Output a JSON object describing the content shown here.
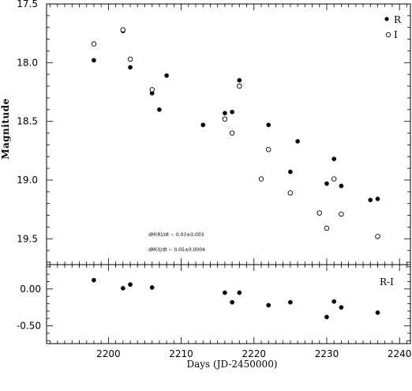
{
  "chart_data": [
    {
      "type": "scatter",
      "ylabel": "Magnitude",
      "xlabel": "",
      "xlim": [
        2191.5,
        2241.5
      ],
      "ylim": [
        19.72,
        17.5
      ],
      "y_inverted": true,
      "x_major_ticks": [
        2200,
        2210,
        2220,
        2230,
        2240
      ],
      "x_minor_step": 1,
      "y_major_ticks": [
        17.5,
        18.0,
        18.5,
        19.0,
        19.5
      ],
      "y_tick_labels": [
        "17.5",
        "18.0",
        "18.5",
        "19.0",
        "19.5"
      ],
      "y_minor_step": 0.1,
      "legend_position": "top-right",
      "series": [
        {
          "name": "R",
          "marker": "filled-circle",
          "color": "#000000",
          "x": [
            2198,
            2202,
            2203,
            2206,
            2207,
            2208,
            2213,
            2216,
            2217,
            2218,
            2222,
            2225,
            2226,
            2230,
            2231,
            2232,
            2236,
            2237
          ],
          "y": [
            17.98,
            17.73,
            18.04,
            18.26,
            18.4,
            18.11,
            18.53,
            18.43,
            18.42,
            18.15,
            18.53,
            18.93,
            18.67,
            19.03,
            18.82,
            19.05,
            19.17,
            19.16
          ]
        },
        {
          "name": "I",
          "marker": "open-circle",
          "color": "#000000",
          "x": [
            2198,
            2202,
            2203,
            2206,
            2216,
            2217,
            2218,
            2221,
            2222,
            2225,
            2229,
            2230,
            2231,
            2232,
            2237
          ],
          "y": [
            17.84,
            17.72,
            17.97,
            18.23,
            18.48,
            18.6,
            18.2,
            18.99,
            18.74,
            19.11,
            19.28,
            19.41,
            18.99,
            19.29,
            19.48
          ]
        }
      ],
      "annotations": [
        "dM(R)/dt ~ 0.03±0.003",
        "dM(I)/dt ~ 0.05±0.0004"
      ]
    },
    {
      "type": "scatter",
      "xlabel": "Days (JD-2450000)",
      "ylabel": "",
      "xlim": [
        2191.5,
        2241.5
      ],
      "ylim": [
        -0.74,
        0.33
      ],
      "x_major_ticks": [
        2200,
        2210,
        2220,
        2230,
        2240
      ],
      "x_tick_labels": [
        "2200",
        "2210",
        "2220",
        "2230",
        "2240"
      ],
      "x_minor_step": 1,
      "y_major_ticks": [
        0.0,
        -0.5
      ],
      "y_tick_labels": [
        "0.00",
        "-0.50"
      ],
      "y_minor_step": 0.1,
      "series": [
        {
          "name": "R-I",
          "marker": "filled-circle",
          "color": "#000000",
          "x": [
            2198,
            2202,
            2203,
            2206,
            2216,
            2217,
            2218,
            2222,
            2225,
            2230,
            2231,
            2232,
            2237
          ],
          "y": [
            0.12,
            0.01,
            0.06,
            0.02,
            -0.05,
            -0.18,
            -0.05,
            -0.22,
            -0.18,
            -0.38,
            -0.17,
            -0.25,
            -0.32
          ]
        }
      ]
    }
  ]
}
